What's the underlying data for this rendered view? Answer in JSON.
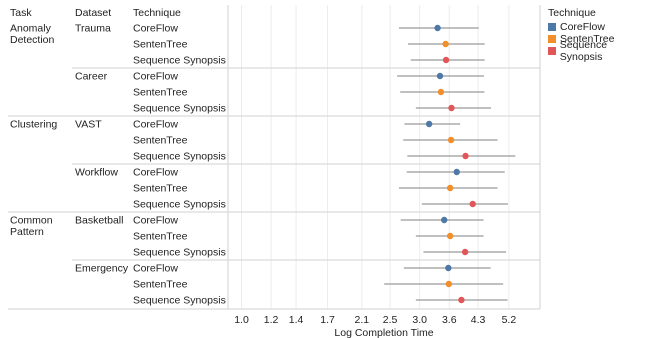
{
  "colors": {
    "CoreFlow": "#4e79a7",
    "SentenTree": "#f28e2b",
    "Sequence Synopsis": "#e15759",
    "whisker": "#9b9b9b",
    "grid": "#ececec",
    "divider": "#d2d2d2"
  },
  "chart_data": {
    "type": "dot-range",
    "headers": {
      "task": "Task",
      "dataset": "Dataset",
      "technique": "Technique"
    },
    "xlabel": "Log Completion Time",
    "x_scale": "log",
    "x_ticks": [
      "1.0",
      "1.2",
      "1.4",
      "1.7",
      "2.1",
      "2.5",
      "3.0",
      "3.6",
      "4.3",
      "5.2"
    ],
    "xlim": [
      0.92,
      6.3
    ],
    "legend": {
      "title": "Technique",
      "position": "top-right",
      "items": [
        "CoreFlow",
        "SentenTree",
        "Sequence Synopsis"
      ]
    },
    "tasks": [
      {
        "name": "Anomaly Detection",
        "datasets": [
          {
            "name": "Trauma",
            "rows": [
              {
                "technique": "CoreFlow",
                "low": 2.64,
                "mean": 3.35,
                "high": 4.32
              },
              {
                "technique": "SentenTree",
                "low": 2.79,
                "mean": 3.52,
                "high": 4.48
              },
              {
                "technique": "Sequence Synopsis",
                "low": 2.84,
                "mean": 3.53,
                "high": 4.48
              }
            ]
          },
          {
            "name": "Career",
            "rows": [
              {
                "technique": "CoreFlow",
                "low": 2.61,
                "mean": 3.4,
                "high": 4.46
              },
              {
                "technique": "SentenTree",
                "low": 2.66,
                "mean": 3.42,
                "high": 4.47
              },
              {
                "technique": "Sequence Synopsis",
                "low": 2.93,
                "mean": 3.65,
                "high": 4.66
              }
            ]
          },
          {
            "name": "",
            "rows": []
          }
        ]
      },
      {
        "name": "Clustering",
        "datasets": [
          {
            "name": "VAST",
            "rows": [
              {
                "technique": "CoreFlow",
                "low": 2.73,
                "mean": 3.18,
                "high": 3.85
              },
              {
                "technique": "SentenTree",
                "low": 2.71,
                "mean": 3.64,
                "high": 4.85
              },
              {
                "technique": "Sequence Synopsis",
                "low": 2.78,
                "mean": 3.98,
                "high": 5.41
              }
            ]
          },
          {
            "name": "Workflow",
            "rows": [
              {
                "technique": "CoreFlow",
                "low": 2.77,
                "mean": 3.77,
                "high": 5.07
              },
              {
                "technique": "SentenTree",
                "low": 2.64,
                "mean": 3.62,
                "high": 4.85
              },
              {
                "technique": "Sequence Synopsis",
                "low": 3.04,
                "mean": 4.16,
                "high": 5.17
              }
            ]
          }
        ]
      },
      {
        "name": "Common Pattern",
        "datasets": [
          {
            "name": "Basketball",
            "rows": [
              {
                "technique": "CoreFlow",
                "low": 2.67,
                "mean": 3.49,
                "high": 4.45
              },
              {
                "technique": "SentenTree",
                "low": 2.93,
                "mean": 3.62,
                "high": 4.45
              },
              {
                "technique": "Sequence Synopsis",
                "low": 3.07,
                "mean": 3.97,
                "high": 5.11
              }
            ]
          },
          {
            "name": "Emergency",
            "rows": [
              {
                "technique": "CoreFlow",
                "low": 2.72,
                "mean": 3.58,
                "high": 4.65
              },
              {
                "technique": "SentenTree",
                "low": 2.41,
                "mean": 3.59,
                "high": 5.02
              },
              {
                "technique": "Sequence Synopsis",
                "low": 2.93,
                "mean": 3.88,
                "high": 5.16
              }
            ]
          }
        ]
      }
    ]
  }
}
